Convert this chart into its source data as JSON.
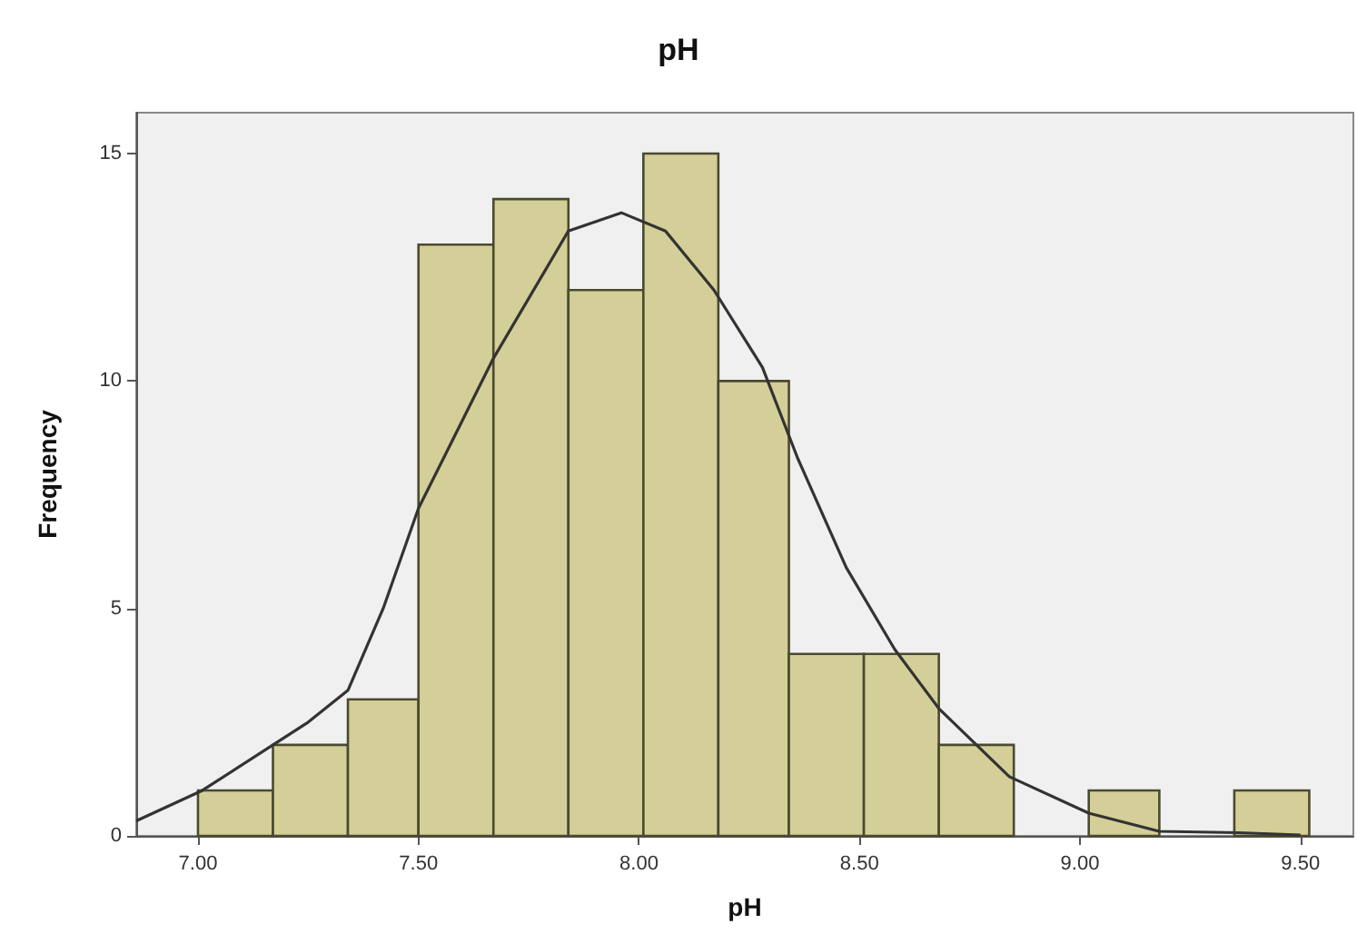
{
  "chart_data": {
    "type": "histogram",
    "title": "pH",
    "xlabel": "pH",
    "ylabel": "Frequency",
    "bins": [
      7.0,
      7.17,
      7.34,
      7.5,
      7.67,
      7.84,
      8.01,
      8.18,
      8.34,
      8.51,
      8.68,
      8.85,
      9.02,
      9.18,
      9.35,
      9.52
    ],
    "series": [
      {
        "color": "#d4cf98",
        "values": [
          1,
          2,
          3,
          13,
          14,
          12,
          15,
          10,
          4,
          4,
          2,
          0,
          1,
          0,
          1
        ]
      },
      {
        "type": "line",
        "color": "#333333",
        "x": [
          6.86,
          7.01,
          7.17,
          7.25,
          7.34,
          7.42,
          7.5,
          7.67,
          7.84,
          7.96,
          8.06,
          8.17,
          8.28,
          8.36,
          8.47,
          8.58,
          8.68,
          8.84,
          9.02,
          9.18,
          9.36,
          9.5
        ],
        "values": [
          0.33,
          1.0,
          2.0,
          2.5,
          3.2,
          5.0,
          7.2,
          10.5,
          13.3,
          13.7,
          13.3,
          12.0,
          10.3,
          8.3,
          5.9,
          4.1,
          2.8,
          1.3,
          0.5,
          0.1,
          0.07,
          0.02
        ]
      }
    ],
    "xlim": [
      6.86,
      9.62
    ],
    "xticks": [
      {
        "value": 7,
        "label": "7.00"
      },
      {
        "value": 7.5,
        "label": "7.50"
      },
      {
        "value": 8,
        "label": "8.00"
      },
      {
        "value": 8.5,
        "label": "8.50"
      },
      {
        "value": 9,
        "label": "9.00"
      },
      {
        "value": 9.5,
        "label": "9.50"
      }
    ],
    "ylim": [
      0,
      15.9
    ],
    "yticks": [
      0,
      5,
      10,
      15
    ],
    "grid": false,
    "marker": "none"
  }
}
